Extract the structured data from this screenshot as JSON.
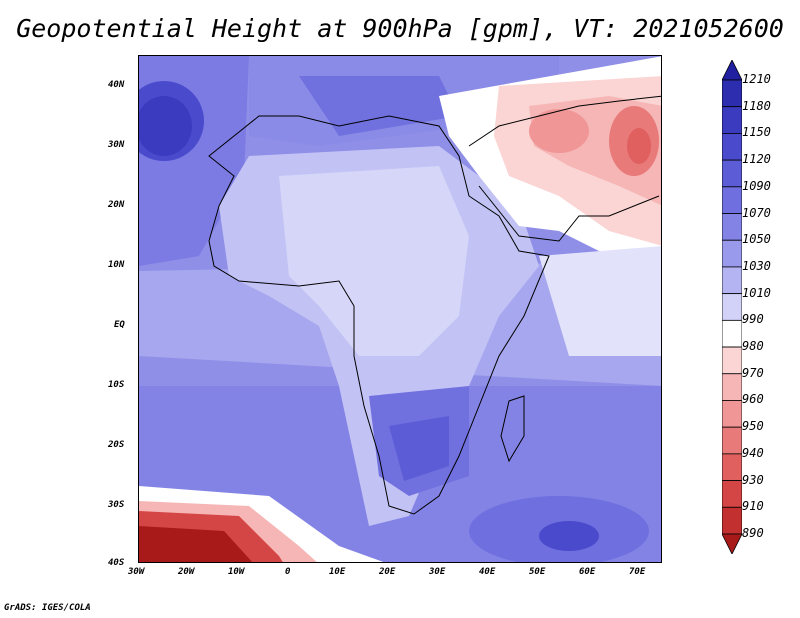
{
  "title": "Geopotential Height at 900hPa [gpm], VT: 2021052600",
  "credit": "GrADS: IGES/COLA",
  "lat_labels": [
    "40N",
    "30N",
    "20N",
    "10N",
    "EQ",
    "10S",
    "20S",
    "30S",
    "40S"
  ],
  "lon_labels": [
    "30W",
    "20W",
    "10W",
    "0",
    "10E",
    "20E",
    "30E",
    "40E",
    "50E",
    "60E",
    "70E"
  ],
  "legend": {
    "levels": [
      "1210",
      "1180",
      "1150",
      "1120",
      "1090",
      "1070",
      "1050",
      "1030",
      "1010",
      "990",
      "980",
      "970",
      "960",
      "950",
      "940",
      "930",
      "910",
      "890"
    ],
    "colors": [
      "#2020a0",
      "#2d2db0",
      "#3b3bc0",
      "#4a4acc",
      "#5c5cd6",
      "#6f6fdf",
      "#8383e6",
      "#9a9aec",
      "#b4b4f2",
      "#d2d2f8",
      "#ffffff",
      "#fbd4d4",
      "#f6b6b6",
      "#f09696",
      "#e87a7a",
      "#e05f5f",
      "#d44545",
      "#c23030",
      "#a81a1a"
    ]
  }
}
